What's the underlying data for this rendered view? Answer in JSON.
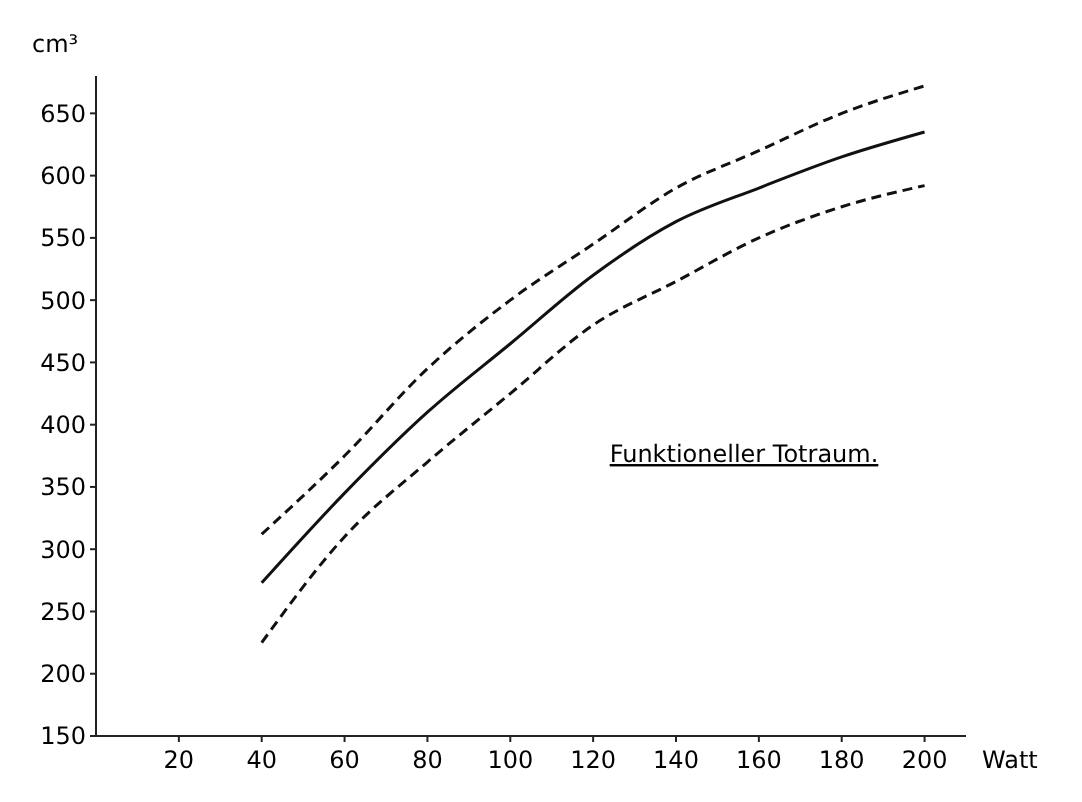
{
  "chart_data": {
    "type": "line",
    "ylabel": "cm³",
    "xlabel": "Watt",
    "annotations": [
      "Funktioneller Totraum."
    ],
    "xlim": [
      0,
      210
    ],
    "xticks": [
      20,
      40,
      60,
      80,
      100,
      120,
      140,
      160,
      180,
      200
    ],
    "ylim": [
      150,
      680
    ],
    "yticks": [
      150,
      200,
      250,
      300,
      350,
      400,
      450,
      500,
      550,
      600,
      650
    ],
    "x": [
      40,
      60,
      80,
      100,
      120,
      140,
      160,
      180,
      200
    ],
    "grid": false,
    "marker": "none",
    "series": [
      {
        "color": "#111111",
        "line_style": "dashed",
        "values": [
          312,
          375,
          445,
          500,
          545,
          590,
          620,
          650,
          672
        ]
      },
      {
        "color": "#111111",
        "line_style": "solid",
        "values": [
          273,
          345,
          410,
          465,
          520,
          563,
          590,
          615,
          635
        ]
      },
      {
        "color": "#111111",
        "line_style": "dashed",
        "values": [
          225,
          310,
          370,
          425,
          480,
          515,
          550,
          575,
          592
        ]
      }
    ]
  }
}
